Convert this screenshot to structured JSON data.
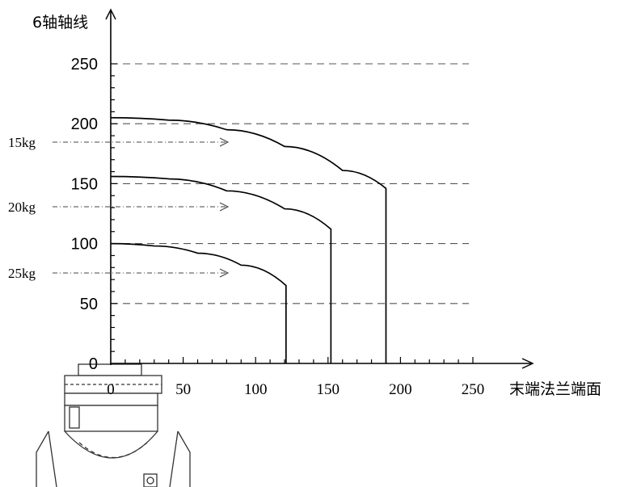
{
  "chart_data": {
    "type": "line",
    "ylabel": "6轴轴线",
    "xlabel": "末端法兰端面",
    "xlim": [
      0,
      250
    ],
    "ylim": [
      0,
      250
    ],
    "x_ticks": [
      "0",
      "50",
      "100",
      "150",
      "200",
      "250"
    ],
    "y_ticks": [
      "0",
      "50",
      "100",
      "150",
      "200",
      "250"
    ],
    "grid": "horizontal-dashed",
    "series": [
      {
        "name": "15kg",
        "points": [
          [
            0,
            205
          ],
          [
            40,
            203
          ],
          [
            80,
            195
          ],
          [
            120,
            181
          ],
          [
            160,
            161
          ],
          [
            190,
            146
          ],
          [
            190,
            0
          ]
        ]
      },
      {
        "name": "20kg",
        "points": [
          [
            0,
            156
          ],
          [
            40,
            154
          ],
          [
            80,
            144
          ],
          [
            120,
            129
          ],
          [
            152,
            112
          ],
          [
            152,
            0
          ]
        ]
      },
      {
        "name": "25kg",
        "points": [
          [
            0,
            100
          ],
          [
            30,
            98
          ],
          [
            60,
            92
          ],
          [
            90,
            82
          ],
          [
            121,
            65
          ],
          [
            121,
            0
          ]
        ]
      }
    ],
    "arrow_labels": [
      "15kg",
      "20kg",
      "25kg"
    ]
  }
}
